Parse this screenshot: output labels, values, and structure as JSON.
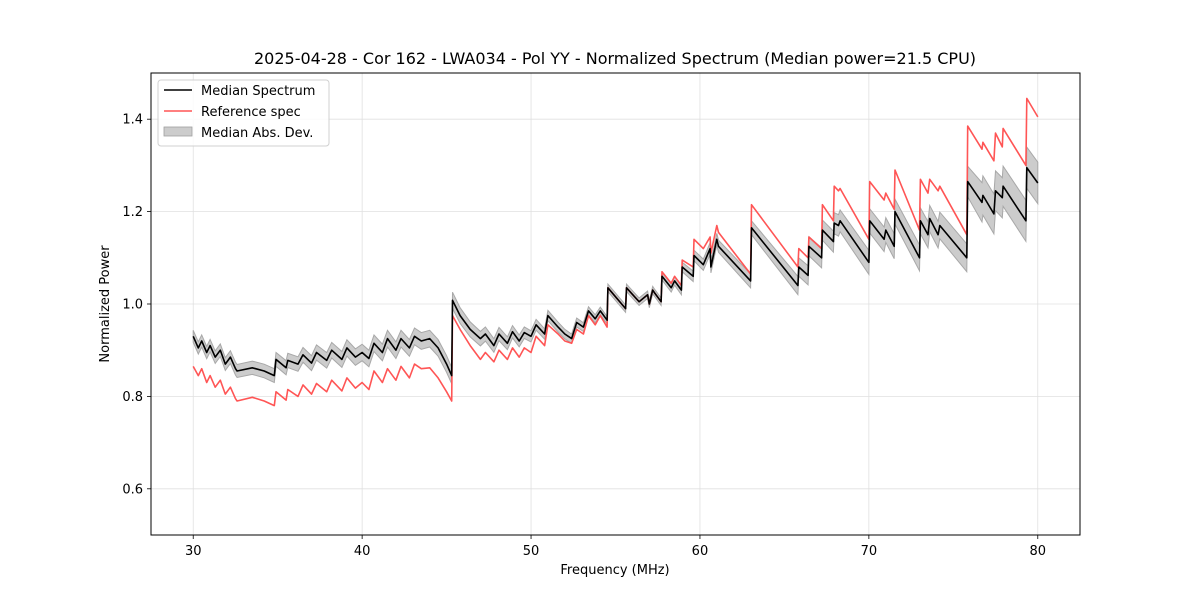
{
  "chart_data": {
    "type": "line",
    "title": "2025-04-28 - Cor 162 - LWA034 - Pol YY - Normalized Spectrum (Median power=21.5 CPU)",
    "xlabel": "Frequency (MHz)",
    "ylabel": "Normalized Power",
    "xlim": [
      27.5,
      82.5
    ],
    "ylim": [
      0.5,
      1.5
    ],
    "xticks": [
      30,
      40,
      50,
      60,
      70,
      80
    ],
    "xtick_labels": [
      "30",
      "40",
      "50",
      "60",
      "70",
      "80"
    ],
    "yticks": [
      0.6,
      0.8,
      1.0,
      1.2,
      1.4
    ],
    "ytick_labels": [
      "0.6",
      "0.8",
      "1.0",
      "1.2",
      "1.4"
    ],
    "grid": true,
    "legend_position": "top-left",
    "legend": [
      "Median Spectrum",
      "Reference spec",
      "Median Abs. Dev."
    ],
    "colors": {
      "median": "#000000",
      "reference": "#ff5555",
      "mad": "#a0a0a0",
      "grid": "#e0e0e0"
    },
    "series": [
      {
        "name": "Median Spectrum",
        "x": [
          30.0,
          30.3,
          30.5,
          30.8,
          31.0,
          31.3,
          31.6,
          31.9,
          32.2,
          32.5,
          32.6,
          33.5,
          34.2,
          34.8,
          34.9,
          35.5,
          35.6,
          36.2,
          36.5,
          37.0,
          37.3,
          37.9,
          38.2,
          38.8,
          39.1,
          39.6,
          40.0,
          40.4,
          40.7,
          41.2,
          41.5,
          42.0,
          42.3,
          42.8,
          43.1,
          43.5,
          44.0,
          44.5,
          45.0,
          45.3,
          45.35,
          45.8,
          46.4,
          47.0,
          47.3,
          47.8,
          48.1,
          48.6,
          48.9,
          49.3,
          49.6,
          50.0,
          50.3,
          50.8,
          51.0,
          51.6,
          52.0,
          52.4,
          52.7,
          53.1,
          53.4,
          53.8,
          54.1,
          54.5,
          54.55,
          55.6,
          55.65,
          56.4,
          56.9,
          57.0,
          57.2,
          57.3,
          57.7,
          57.75,
          58.3,
          58.5,
          58.9,
          58.95,
          59.6,
          59.65,
          60.2,
          60.6,
          60.65,
          61.0,
          61.1,
          63.0,
          63.05,
          65.8,
          65.85,
          66.4,
          66.45,
          67.2,
          67.25,
          67.9,
          67.95,
          68.2,
          68.3,
          70.0,
          70.05,
          70.9,
          71.0,
          71.5,
          71.55,
          73.0,
          73.05,
          73.5,
          73.6,
          74.1,
          74.2,
          75.8,
          75.85,
          76.7,
          76.75,
          77.4,
          77.5,
          77.9,
          77.95,
          79.3,
          79.35,
          80.0
        ],
        "values": [
          0.93,
          0.905,
          0.92,
          0.895,
          0.91,
          0.885,
          0.9,
          0.87,
          0.885,
          0.86,
          0.855,
          0.862,
          0.855,
          0.845,
          0.88,
          0.862,
          0.878,
          0.87,
          0.89,
          0.872,
          0.895,
          0.878,
          0.9,
          0.88,
          0.905,
          0.885,
          0.895,
          0.882,
          0.915,
          0.895,
          0.925,
          0.9,
          0.925,
          0.905,
          0.93,
          0.92,
          0.925,
          0.905,
          0.87,
          0.845,
          1.008,
          0.975,
          0.945,
          0.925,
          0.935,
          0.91,
          0.935,
          0.915,
          0.94,
          0.92,
          0.938,
          0.93,
          0.955,
          0.935,
          0.975,
          0.95,
          0.935,
          0.925,
          0.96,
          0.95,
          0.985,
          0.968,
          0.985,
          0.965,
          1.035,
          0.99,
          1.035,
          1.005,
          1.02,
          1.0,
          1.03,
          1.025,
          1.005,
          1.06,
          1.035,
          1.05,
          1.03,
          1.08,
          1.06,
          1.105,
          1.085,
          1.12,
          1.08,
          1.14,
          1.125,
          1.05,
          1.165,
          1.04,
          1.08,
          1.062,
          1.125,
          1.1,
          1.16,
          1.135,
          1.175,
          1.17,
          1.18,
          1.09,
          1.18,
          1.14,
          1.16,
          1.125,
          1.2,
          1.1,
          1.18,
          1.15,
          1.185,
          1.15,
          1.17,
          1.1,
          1.265,
          1.22,
          1.235,
          1.195,
          1.245,
          1.23,
          1.255,
          1.18,
          1.295,
          1.262
        ]
      },
      {
        "name": "Reference spec",
        "x": [
          30.0,
          30.3,
          30.5,
          30.8,
          31.0,
          31.3,
          31.6,
          31.9,
          32.2,
          32.5,
          32.6,
          33.5,
          34.2,
          34.8,
          34.9,
          35.5,
          35.6,
          36.2,
          36.5,
          37.0,
          37.3,
          37.9,
          38.2,
          38.8,
          39.1,
          39.6,
          40.0,
          40.4,
          40.7,
          41.2,
          41.5,
          42.0,
          42.3,
          42.8,
          43.1,
          43.5,
          44.0,
          44.5,
          45.0,
          45.3,
          45.35,
          45.8,
          46.4,
          47.0,
          47.3,
          47.8,
          48.1,
          48.6,
          48.9,
          49.3,
          49.6,
          50.0,
          50.3,
          50.8,
          51.0,
          51.6,
          52.0,
          52.4,
          52.7,
          53.1,
          53.4,
          53.8,
          54.1,
          54.5,
          54.55,
          55.6,
          55.65,
          56.4,
          56.9,
          57.0,
          57.2,
          57.3,
          57.7,
          57.75,
          58.3,
          58.5,
          58.9,
          58.95,
          59.6,
          59.65,
          60.2,
          60.6,
          60.65,
          61.0,
          61.1,
          63.0,
          63.05,
          65.8,
          65.85,
          66.4,
          66.45,
          67.2,
          67.25,
          67.9,
          67.95,
          68.2,
          68.3,
          70.0,
          70.05,
          70.9,
          71.0,
          71.5,
          71.55,
          73.0,
          73.05,
          73.5,
          73.6,
          74.1,
          74.2,
          75.8,
          75.85,
          76.7,
          76.75,
          77.4,
          77.5,
          77.9,
          77.95,
          79.3,
          79.35,
          80.0
        ],
        "values": [
          0.865,
          0.845,
          0.86,
          0.83,
          0.845,
          0.82,
          0.835,
          0.805,
          0.82,
          0.795,
          0.79,
          0.798,
          0.79,
          0.78,
          0.81,
          0.792,
          0.815,
          0.8,
          0.825,
          0.805,
          0.828,
          0.81,
          0.835,
          0.812,
          0.84,
          0.818,
          0.83,
          0.815,
          0.855,
          0.83,
          0.86,
          0.835,
          0.865,
          0.84,
          0.87,
          0.86,
          0.862,
          0.84,
          0.81,
          0.79,
          0.975,
          0.945,
          0.91,
          0.88,
          0.895,
          0.875,
          0.9,
          0.88,
          0.905,
          0.885,
          0.905,
          0.895,
          0.93,
          0.91,
          0.955,
          0.935,
          0.92,
          0.915,
          0.945,
          0.935,
          0.975,
          0.955,
          0.975,
          0.95,
          1.035,
          0.99,
          1.035,
          1.005,
          1.02,
          1.0,
          1.03,
          1.025,
          1.005,
          1.07,
          1.045,
          1.06,
          1.04,
          1.095,
          1.08,
          1.14,
          1.12,
          1.145,
          1.11,
          1.17,
          1.155,
          1.065,
          1.215,
          1.08,
          1.12,
          1.1,
          1.145,
          1.12,
          1.215,
          1.18,
          1.255,
          1.245,
          1.25,
          1.14,
          1.265,
          1.225,
          1.24,
          1.205,
          1.29,
          1.16,
          1.27,
          1.24,
          1.27,
          1.245,
          1.255,
          1.15,
          1.385,
          1.335,
          1.35,
          1.31,
          1.37,
          1.34,
          1.38,
          1.3,
          1.445,
          1.405
        ]
      },
      {
        "name": "Median Abs. Dev.",
        "description": "shaded band = median ± MAD",
        "x": [
          30.0,
          35.0,
          40.0,
          45.0,
          50.0,
          54.5,
          57.7,
          60.0,
          63.0,
          66.0,
          70.0,
          75.8,
          76.0,
          80.0
        ],
        "mad": [
          0.013,
          0.015,
          0.018,
          0.018,
          0.012,
          0.008,
          0.008,
          0.012,
          0.015,
          0.02,
          0.026,
          0.03,
          0.042,
          0.045
        ]
      }
    ]
  }
}
